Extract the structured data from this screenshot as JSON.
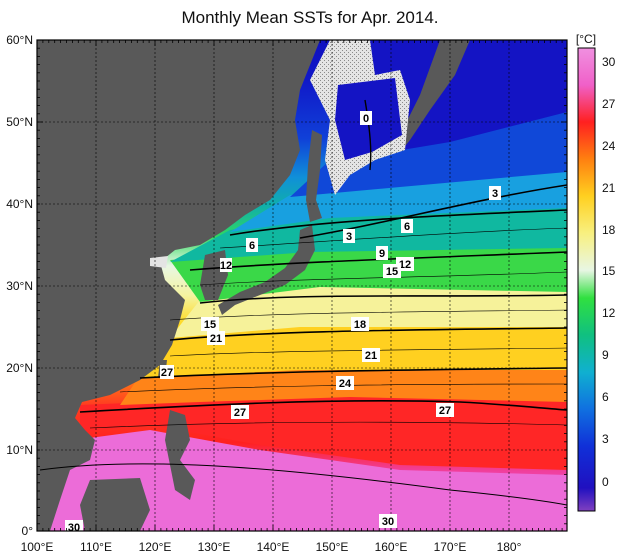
{
  "title": "Monthly Mean SSTs for Apr. 2014.",
  "colorbar": {
    "unit": "[°C]",
    "ticks": [
      "30",
      "27",
      "24",
      "21",
      "18",
      "15",
      "12",
      "9",
      "6",
      "3",
      "0"
    ]
  },
  "map": {
    "lat_labels": [
      "60°N",
      "50°N",
      "40°N",
      "30°N",
      "20°N",
      "10°N",
      "0°"
    ],
    "lon_labels": [
      "100°E",
      "110°E",
      "120°E",
      "130°E",
      "140°E",
      "150°E",
      "160°E",
      "170°E",
      "180°"
    ],
    "contour_labels": [
      "0",
      "3",
      "3",
      "6",
      "6",
      "9",
      "12",
      "15",
      "12",
      "15",
      "18",
      "21",
      "21",
      "24",
      "27",
      "27",
      "27",
      "30",
      "30"
    ]
  },
  "colors": {
    "land": "#595959",
    "ice": "#d8d8d8",
    "sst_30": "#ec6cd8",
    "sst_27": "#ff2222",
    "sst_24": "#ff7a10",
    "sst_21": "#ffd820",
    "sst_18": "#f4f4a0",
    "sst_15": "#e8f6e4",
    "sst_12": "#40e840",
    "sst_9": "#10b890",
    "sst_6": "#10a8d8",
    "sst_3": "#1050d8",
    "sst_0": "#1010c0"
  }
}
